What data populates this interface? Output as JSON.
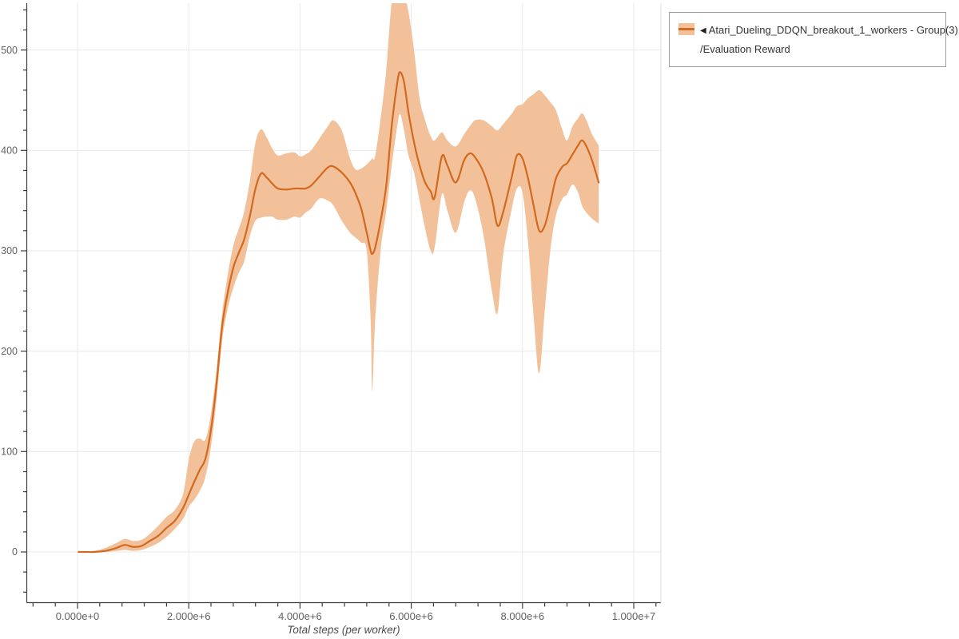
{
  "legend": {
    "collapse_icon": "◀",
    "series_name": "Atari_Dueling_DDQN_breakout_1_workers - Group(3)",
    "series_metric": "/Evaluation Reward"
  },
  "axes": {
    "x_title": "Total steps (per worker)",
    "x_ticks": [
      {
        "v_millions": 0,
        "label": "0.000e+0"
      },
      {
        "v_millions": 2,
        "label": "2.000e+6"
      },
      {
        "v_millions": 4,
        "label": "4.000e+6"
      },
      {
        "v_millions": 6,
        "label": "6.000e+6"
      },
      {
        "v_millions": 8,
        "label": "8.000e+6"
      },
      {
        "v_millions": 10,
        "label": "1.000e+7"
      }
    ],
    "y_ticks": [
      {
        "v": 0,
        "label": "0"
      },
      {
        "v": 100,
        "label": "100"
      },
      {
        "v": 200,
        "label": "200"
      },
      {
        "v": 300,
        "label": "300"
      },
      {
        "v": 400,
        "label": "400"
      },
      {
        "v": 500,
        "label": "500"
      }
    ],
    "x_minor_step_millions": 0.4,
    "x_minor_range_millions": [
      -0.8,
      10.4
    ],
    "y_minor_step": 20,
    "y_minor_range": [
      -40,
      540
    ]
  },
  "colors": {
    "line": "#d2691e",
    "band": "#f2c19a",
    "grid": "#e9e9e9",
    "axis": "#3d3d3d",
    "plot_border": "#dddddd",
    "tick_label": "#616161"
  },
  "chart_data": {
    "type": "line",
    "title": "",
    "xlabel": "Total steps (per worker)",
    "ylabel": "",
    "xlim_millions": [
      -0.9,
      10.5
    ],
    "ylim": [
      -50,
      547
    ],
    "grid": true,
    "legend_position": "top-right-outside",
    "series": [
      {
        "name": "Atari_Dueling_DDQN_breakout_1_workers - Group(3)/Evaluation Reward",
        "style": "mean line with shaded min-max band",
        "x_millions": [
          0.02,
          0.3,
          0.5,
          0.7,
          0.85,
          1.0,
          1.15,
          1.3,
          1.45,
          1.6,
          1.75,
          1.9,
          2.0,
          2.1,
          2.2,
          2.3,
          2.4,
          2.5,
          2.6,
          2.7,
          2.8,
          2.9,
          3.0,
          3.1,
          3.2,
          3.3,
          3.4,
          3.5,
          3.6,
          3.75,
          3.9,
          4.0,
          4.1,
          4.2,
          4.35,
          4.5,
          4.6,
          4.75,
          4.9,
          5.0,
          5.1,
          5.2,
          5.27,
          5.3,
          5.35,
          5.45,
          5.55,
          5.65,
          5.75,
          5.8,
          5.87,
          5.95,
          6.05,
          6.15,
          6.25,
          6.35,
          6.42,
          6.55,
          6.65,
          6.8,
          6.95,
          7.05,
          7.15,
          7.3,
          7.45,
          7.55,
          7.65,
          7.8,
          7.9,
          8.0,
          8.1,
          8.2,
          8.3,
          8.4,
          8.5,
          8.6,
          8.72,
          8.8,
          8.9,
          9.0,
          9.07,
          9.15,
          9.25,
          9.37
        ],
        "mean": [
          0,
          0,
          1,
          4,
          7,
          5,
          6,
          11,
          16,
          24,
          31,
          44,
          57,
          70,
          82,
          93,
          122,
          168,
          225,
          258,
          283,
          298,
          312,
          335,
          362,
          377,
          373,
          367,
          362,
          361,
          362,
          362,
          362,
          365,
          374,
          383,
          384,
          378,
          368,
          357,
          342,
          318,
          300,
          297,
          303,
          330,
          365,
          425,
          468,
          478,
          468,
          438,
          408,
          385,
          368,
          359,
          353,
          394,
          385,
          368,
          390,
          397,
          393,
          378,
          352,
          325,
          338,
          372,
          395,
          392,
          372,
          345,
          320,
          325,
          347,
          372,
          384,
          387,
          396,
          405,
          410,
          404,
          390,
          368
        ],
        "band_low": [
          0,
          0,
          0,
          1,
          2,
          1,
          2,
          5,
          9,
          15,
          23,
          33,
          45,
          52,
          61,
          75,
          105,
          152,
          210,
          242,
          263,
          278,
          290,
          315,
          330,
          333,
          334,
          334,
          331,
          331,
          334,
          333,
          338,
          342,
          352,
          350,
          345,
          330,
          318,
          313,
          308,
          300,
          230,
          160,
          230,
          300,
          340,
          385,
          425,
          436,
          420,
          395,
          378,
          350,
          322,
          300,
          303,
          356,
          340,
          318,
          348,
          360,
          352,
          315,
          260,
          238,
          295,
          340,
          362,
          358,
          308,
          235,
          178,
          240,
          300,
          335,
          352,
          356,
          366,
          358,
          345,
          338,
          332,
          327
        ],
        "band_high": [
          0,
          1,
          4,
          9,
          13,
          11,
          12,
          18,
          26,
          35,
          42,
          58,
          92,
          110,
          113,
          112,
          138,
          182,
          238,
          276,
          305,
          322,
          340,
          370,
          408,
          421,
          413,
          402,
          395,
          397,
          398,
          394,
          396,
          400,
          412,
          424,
          430,
          420,
          392,
          381,
          382,
          386,
          390,
          392,
          394,
          432,
          480,
          548,
          560,
          560,
          556,
          538,
          500,
          452,
          430,
          414,
          410,
          418,
          410,
          404,
          416,
          424,
          430,
          430,
          424,
          420,
          426,
          436,
          444,
          446,
          452,
          456,
          460,
          455,
          448,
          440,
          420,
          410,
          424,
          432,
          437,
          430,
          416,
          405
        ]
      }
    ]
  }
}
